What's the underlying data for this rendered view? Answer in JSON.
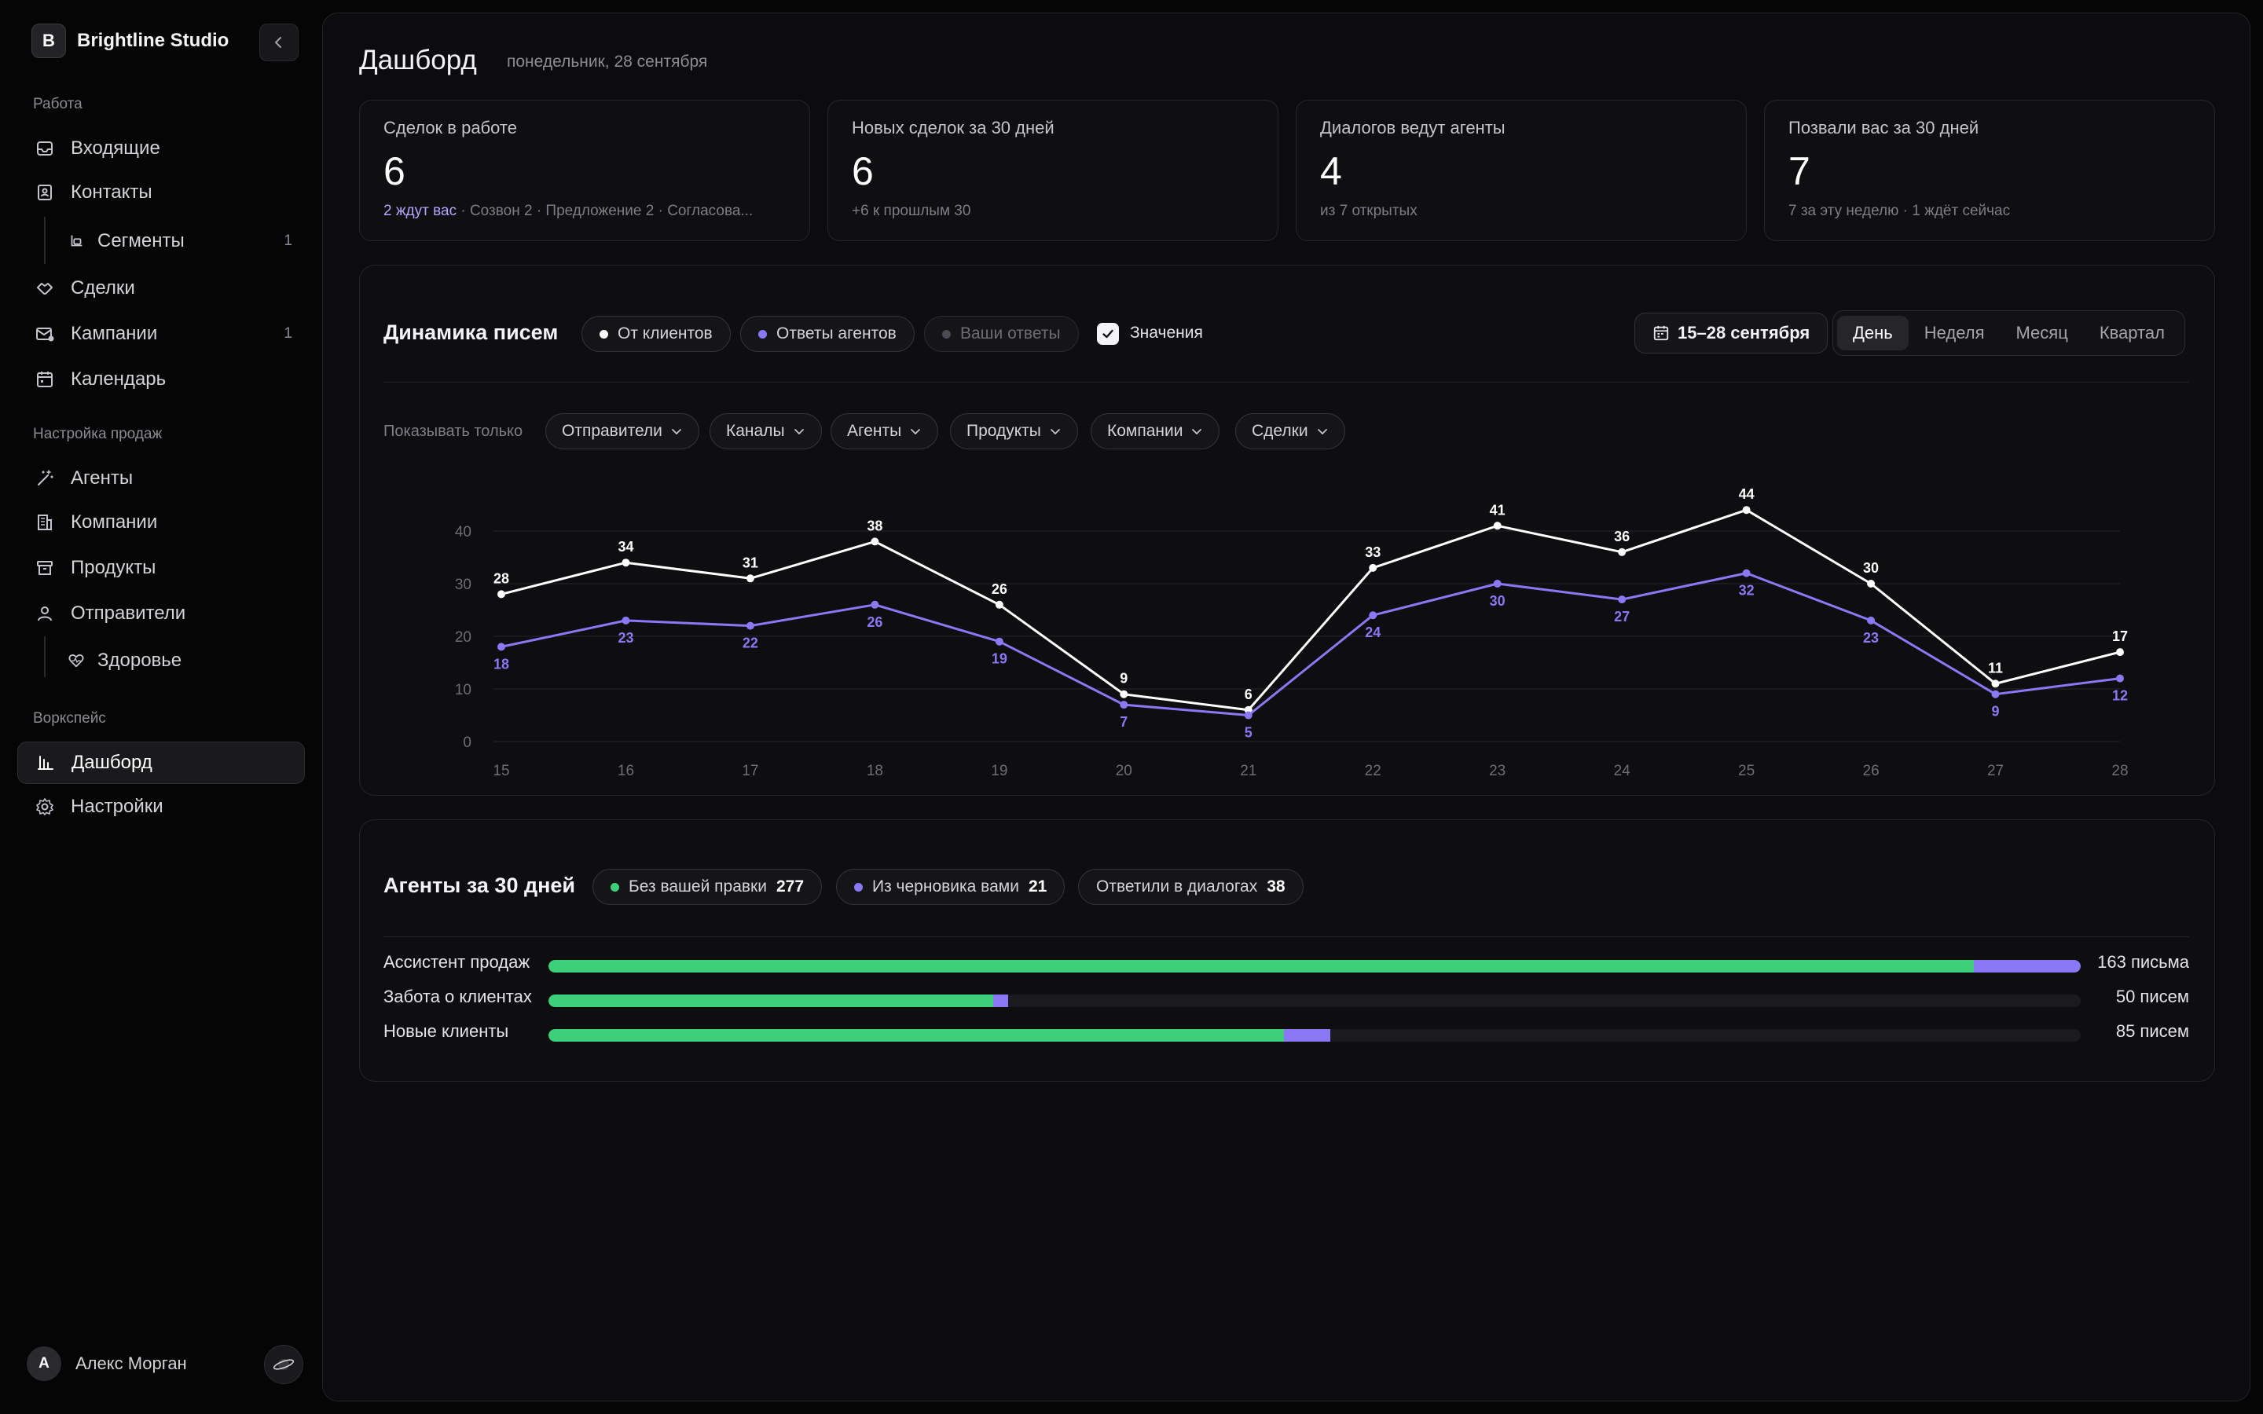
{
  "sidebar": {
    "brand_letter": "B",
    "brand_name": "Brightline Studio",
    "sections": {
      "work": "Работа",
      "sales": "Настройка продаж",
      "workspace": "Воркспейс"
    },
    "items": {
      "inbox": "Входящие",
      "contacts": "Контакты",
      "segments": "Сегменты",
      "segments_badge": "1",
      "deals": "Сделки",
      "campaigns": "Кампании",
      "campaigns_badge": "1",
      "calendar": "Календарь",
      "agents": "Агенты",
      "companies": "Компании",
      "products": "Продукты",
      "senders": "Отправители",
      "health": "Здоровье",
      "dashboard": "Дашборд",
      "settings": "Настройки"
    },
    "user_initial": "А",
    "user_name": "Алекс Морган"
  },
  "header": {
    "title": "Дашборд",
    "date": "понедельник, 28 сентября"
  },
  "stats": [
    {
      "label": "Сделок в работе",
      "value": "6",
      "sub_highlight": "2 ждут вас",
      "sub": " · Созвон 2 · Предложение 2 · Согласова..."
    },
    {
      "label": "Новых сделок за 30 дней",
      "value": "6",
      "sub_highlight": "",
      "sub": "+6 к прошлым 30"
    },
    {
      "label": "Диалогов ведут агенты",
      "value": "4",
      "sub_highlight": "",
      "sub": "из 7 открытых"
    },
    {
      "label": "Позвали вас за 30 дней",
      "value": "7",
      "sub_highlight": "",
      "sub": "7 за эту неделю · 1 ждёт сейчас"
    }
  ],
  "letters_panel": {
    "title": "Динамика писем",
    "toggles": {
      "from_clients": "От клиентов",
      "agent_replies": "Ответы агентов",
      "your_replies": "Ваши ответы"
    },
    "values_label": "Значения",
    "values_checked": true,
    "date_range": "15–28 сентября",
    "periods": [
      "День",
      "Неделя",
      "Месяц",
      "Квартал"
    ],
    "active_period": "День",
    "filter_label": "Показывать только",
    "filters": [
      "Отправители",
      "Каналы",
      "Агенты",
      "Продукты",
      "Компании",
      "Сделки"
    ],
    "colors": {
      "clients": "#ffffff",
      "agents": "#8b78f6",
      "yours": "#4a4a50"
    }
  },
  "chart_data": {
    "type": "line",
    "x": [
      "15",
      "16",
      "17",
      "18",
      "19",
      "20",
      "21",
      "22",
      "23",
      "24",
      "25",
      "26",
      "27",
      "28"
    ],
    "series": [
      {
        "name": "От клиентов",
        "values": [
          28,
          34,
          31,
          38,
          26,
          9,
          6,
          33,
          41,
          36,
          44,
          30,
          11,
          17
        ]
      },
      {
        "name": "Ответы агентов",
        "values": [
          18,
          23,
          22,
          26,
          19,
          7,
          5,
          24,
          30,
          27,
          32,
          23,
          9,
          12
        ]
      }
    ],
    "yticks": [
      "0",
      "10",
      "20",
      "30",
      "40"
    ],
    "ylim": [
      0,
      45
    ],
    "grid": true,
    "data_labels": true
  },
  "agents_panel": {
    "title": "Агенты за 30 дней",
    "chips": [
      {
        "label": "Без вашей правки",
        "value": "277",
        "color": "#3ecf7a"
      },
      {
        "label": "Из черновика вами",
        "value": "21",
        "color": "#8b78f6"
      },
      {
        "label": "Ответили в диалогах",
        "value": "38",
        "color": ""
      }
    ],
    "rows": [
      {
        "name": "Ассистент продаж",
        "green": 0.93,
        "purple": 0.07,
        "fill": 1.0,
        "count": "163 письма"
      },
      {
        "name": "Забота о клиентах",
        "green": 0.29,
        "purple": 0.01,
        "fill": 0.3,
        "count": "50 писем"
      },
      {
        "name": "Новые клиенты",
        "green": 0.48,
        "purple": 0.03,
        "fill": 0.51,
        "count": "85 писем"
      }
    ]
  }
}
